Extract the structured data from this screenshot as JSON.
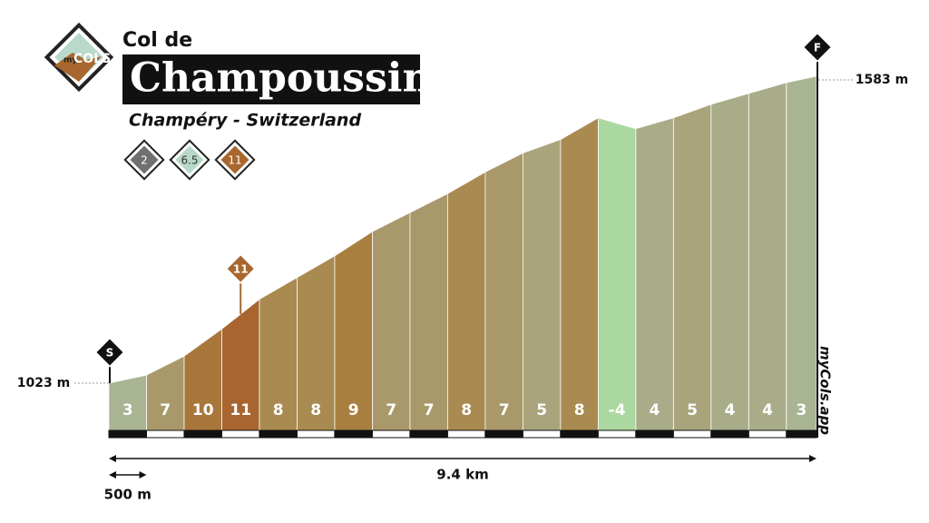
{
  "chart_data": {
    "type": "climb-profile",
    "logo": {
      "small": "my",
      "big": "COLS"
    },
    "title": "Col de",
    "name": "Champoussin",
    "subtitle": "Champéry - Switzerland",
    "badges": [
      {
        "label": "2",
        "color": "#707070"
      },
      {
        "label": "6.5",
        "color": "#b8d9c9"
      },
      {
        "label": "11",
        "color": "#a8672e"
      }
    ],
    "start_marker": "S",
    "finish_marker": "F",
    "start_elevation": {
      "value": 1023,
      "label": "1023 m"
    },
    "end_elevation": {
      "value": 1583,
      "label": "1583 m"
    },
    "gradients": [
      3,
      7,
      10,
      11,
      8,
      8,
      9,
      7,
      7,
      8,
      7,
      5,
      8,
      -4,
      4,
      5,
      4,
      4,
      3
    ],
    "colors": [
      "#a9b493",
      "#a9996a",
      "#a9763c",
      "#a8652f",
      "#a98a50",
      "#a98a50",
      "#a97f40",
      "#a9996a",
      "#a9996a",
      "#a98a50",
      "#a9996a",
      "#a9a47b",
      "#a98a50",
      "#abd8a0",
      "#a9ac88",
      "#a9a47b",
      "#a9ac88",
      "#a9ac88",
      "#a9b493"
    ],
    "max_gradient_marker": 11,
    "segment_length": {
      "value": 500,
      "label": "500 m"
    },
    "total_distance": {
      "value": 9.4,
      "label": "9.4 km"
    },
    "watermark": "myCols.app"
  }
}
